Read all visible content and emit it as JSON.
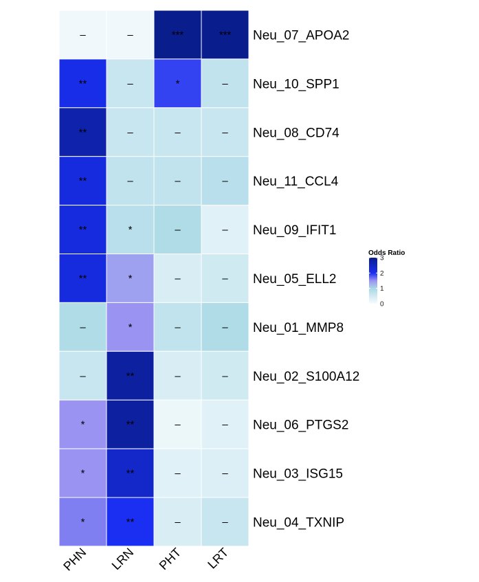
{
  "chart_data": {
    "type": "heatmap",
    "columns": [
      "PHN",
      "LRN",
      "PHT",
      "LRT"
    ],
    "rows": [
      "Neu_07_APOA2",
      "Neu_10_SPP1",
      "Neu_08_CD74",
      "Neu_11_CCL4",
      "Neu_09_IFIT1",
      "Neu_05_ELL2",
      "Neu_01_MMP8",
      "Neu_02_S100A12",
      "Neu_06_PTGS2",
      "Neu_03_ISG15",
      "Neu_04_TXNIP"
    ],
    "values": [
      [
        0.1,
        0.1,
        3.0,
        3.0
      ],
      [
        2.1,
        0.6,
        1.9,
        0.7
      ],
      [
        2.7,
        0.6,
        0.6,
        0.6
      ],
      [
        2.2,
        0.7,
        0.7,
        0.8
      ],
      [
        2.2,
        0.8,
        0.9,
        0.3
      ],
      [
        2.2,
        1.4,
        0.4,
        0.5
      ],
      [
        0.9,
        1.5,
        0.7,
        0.9
      ],
      [
        0.6,
        2.8,
        0.4,
        0.5
      ],
      [
        1.5,
        2.8,
        0.15,
        0.3
      ],
      [
        1.5,
        2.4,
        0.3,
        0.35
      ],
      [
        1.6,
        2.0,
        0.4,
        0.6
      ]
    ],
    "annotations": [
      [
        "–",
        "–",
        "***",
        "***"
      ],
      [
        "**",
        "–",
        "*",
        "–"
      ],
      [
        "**",
        "–",
        "–",
        "–"
      ],
      [
        "**",
        "–",
        "–",
        "–"
      ],
      [
        "**",
        "*",
        "–",
        "–"
      ],
      [
        "**",
        "*",
        "–",
        "–"
      ],
      [
        "–",
        "*",
        "–",
        "–"
      ],
      [
        "–",
        "**",
        "–",
        "–"
      ],
      [
        "*",
        "**",
        "–",
        "–"
      ],
      [
        "*",
        "**",
        "–",
        "–"
      ],
      [
        "*",
        "**",
        "–",
        "–"
      ]
    ],
    "legend": {
      "title": "Odds Ratio",
      "ticks": [
        "0",
        "1",
        "2",
        "3"
      ],
      "range": [
        0,
        3
      ],
      "placement": "right"
    },
    "color_scale": {
      "stops": [
        {
          "value": 0,
          "color": "#f8fcfe"
        },
        {
          "value": 1,
          "color": "#a8d8e6"
        },
        {
          "value": 1.5,
          "color": "#9a93f2"
        },
        {
          "value": 2,
          "color": "#1a2ff2"
        },
        {
          "value": 3,
          "color": "#0a1d8c"
        }
      ]
    }
  }
}
